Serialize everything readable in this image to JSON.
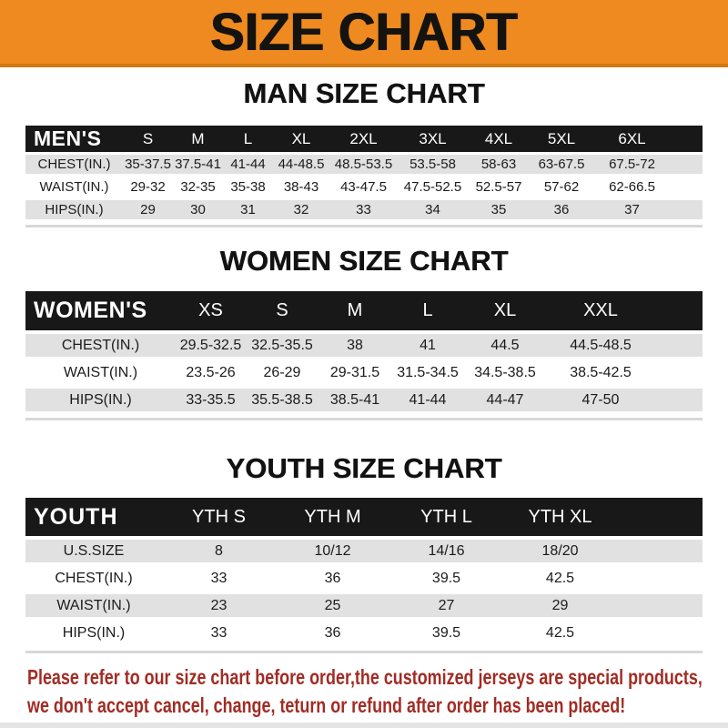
{
  "banner": {
    "title": "SIZE CHART"
  },
  "colors": {
    "banner_orange": "#EE8A1F",
    "header_black": "#181818",
    "row_gray": "#E1E1E1",
    "disclaimer_red": "#A12C24"
  },
  "sections": {
    "men": {
      "heading": "MAN SIZE CHART",
      "corner": "MEN'S",
      "columns": [
        "S",
        "M",
        "L",
        "XL",
        "2XL",
        "3XL",
        "4XL",
        "5XL",
        "6XL"
      ],
      "rows": [
        {
          "label": "CHEST(IN.)",
          "values": [
            "35-37.5",
            "37.5-41",
            "41-44",
            "44-48.5",
            "48.5-53.5",
            "53.5-58",
            "58-63",
            "63-67.5",
            "67.5-72"
          ]
        },
        {
          "label": "WAIST(IN.)",
          "values": [
            "29-32",
            "32-35",
            "35-38",
            "38-43",
            "43-47.5",
            "47.5-52.5",
            "52.5-57",
            "57-62",
            "62-66.5"
          ]
        },
        {
          "label": "HIPS(IN.)",
          "values": [
            "29",
            "30",
            "31",
            "32",
            "33",
            "34",
            "35",
            "36",
            "37"
          ]
        }
      ]
    },
    "women": {
      "heading": "WOMEN SIZE CHART",
      "corner": "WOMEN'S",
      "columns": [
        "XS",
        "S",
        "M",
        "L",
        "XL",
        "XXL"
      ],
      "rows": [
        {
          "label": "CHEST(IN.)",
          "values": [
            "29.5-32.5",
            "32.5-35.5",
            "38",
            "41",
            "44.5",
            "44.5-48.5"
          ]
        },
        {
          "label": "WAIST(IN.)",
          "values": [
            "23.5-26",
            "26-29",
            "29-31.5",
            "31.5-34.5",
            "34.5-38.5",
            "38.5-42.5"
          ]
        },
        {
          "label": "HIPS(IN.)",
          "values": [
            "33-35.5",
            "35.5-38.5",
            "38.5-41",
            "41-44",
            "44-47",
            "47-50"
          ]
        }
      ]
    },
    "youth": {
      "heading": "YOUTH SIZE CHART",
      "corner": "YOUTH",
      "columns": [
        "YTH S",
        "YTH M",
        "YTH L",
        "YTH XL"
      ],
      "rows": [
        {
          "label": "U.S.SIZE",
          "values": [
            "8",
            "10/12",
            "14/16",
            "18/20"
          ]
        },
        {
          "label": "CHEST(IN.)",
          "values": [
            "33",
            "36",
            "39.5",
            "42.5"
          ]
        },
        {
          "label": "WAIST(IN.)",
          "values": [
            "23",
            "25",
            "27",
            "29"
          ]
        },
        {
          "label": "HIPS(IN.)",
          "values": [
            "33",
            "36",
            "39.5",
            "42.5"
          ]
        }
      ]
    }
  },
  "disclaimer": {
    "line1": "Please refer to our size chart before order,the customized jerseys are special products,",
    "line2": "we don't accept cancel, change, teturn or refund after order has been placed!"
  }
}
